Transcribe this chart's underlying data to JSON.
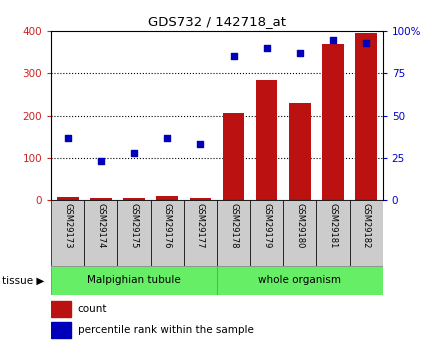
{
  "title": "GDS732 / 142718_at",
  "samples": [
    "GSM29173",
    "GSM29174",
    "GSM29175",
    "GSM29176",
    "GSM29177",
    "GSM29178",
    "GSM29179",
    "GSM29180",
    "GSM29181",
    "GSM29182"
  ],
  "counts": [
    8,
    5,
    4,
    10,
    6,
    207,
    285,
    230,
    370,
    395
  ],
  "percentiles": [
    37,
    23,
    28,
    37,
    33,
    85,
    90,
    87,
    95,
    93
  ],
  "tissue_labels": [
    "Malpighian tubule",
    "whole organism"
  ],
  "tissue_split": 5,
  "bar_color": "#BB1111",
  "dot_color": "#0000BB",
  "left_ylim": [
    0,
    400
  ],
  "right_ylim": [
    0,
    100
  ],
  "left_yticks": [
    0,
    100,
    200,
    300,
    400
  ],
  "right_yticks": [
    0,
    25,
    50,
    75,
    100
  ],
  "right_yticklabels": [
    "0",
    "25",
    "50",
    "75",
    "100%"
  ],
  "grid_color": "#000000",
  "tick_label_color_left": "#CC2222",
  "tick_label_color_right": "#0000CC",
  "legend_count_color": "#BB1111",
  "legend_pct_color": "#0000BB",
  "tissue_label": "tissue",
  "label_box_color": "#CCCCCC",
  "tissue_color": "#66EE66"
}
